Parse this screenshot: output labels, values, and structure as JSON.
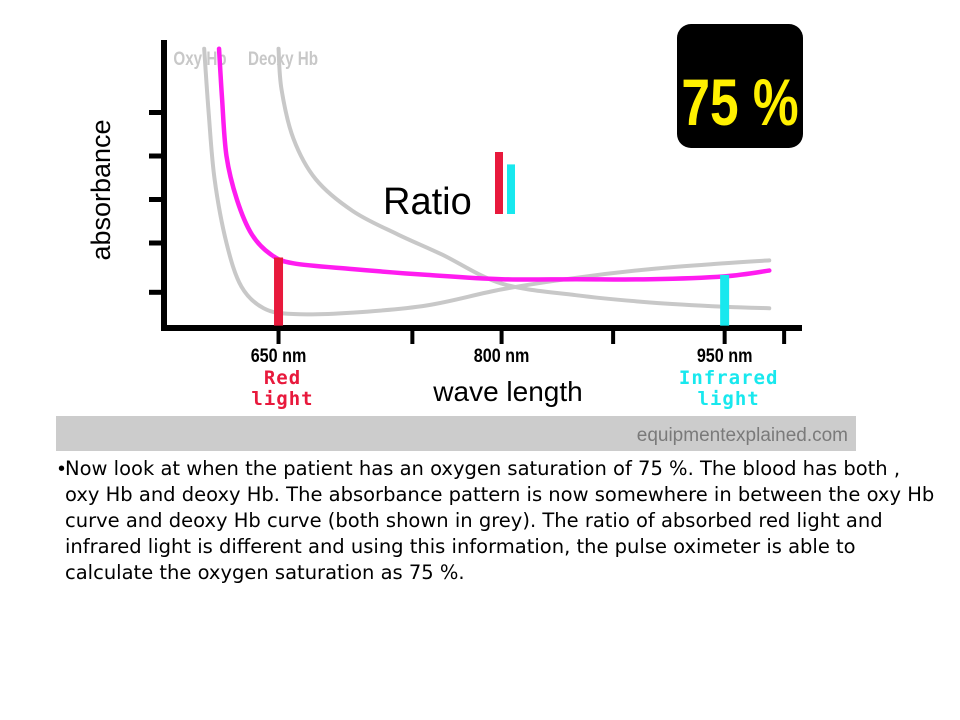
{
  "chart_data": {
    "type": "line",
    "title": "",
    "xlabel": "wave length",
    "ylabel": "absorbance",
    "x_ticks": [
      {
        "value": 650,
        "label": "650 nm",
        "sublabel": "Red light",
        "color": "#e8193c"
      },
      {
        "value": 800,
        "label": "800 nm",
        "sublabel": "",
        "color": ""
      },
      {
        "value": 950,
        "label": "950 nm",
        "sublabel": "Infrared light",
        "color": "#18e8ee"
      }
    ],
    "xlim": [
      575,
      1000
    ],
    "ylim": [
      0,
      10
    ],
    "grid": false,
    "legend_placement": "top-left",
    "series": [
      {
        "name": "Oxy Hb",
        "color": "#c8c8c8",
        "points": [
          [
            600,
            9.7
          ],
          [
            603,
            7.5
          ],
          [
            607,
            5.2
          ],
          [
            615,
            3.0
          ],
          [
            625,
            1.5
          ],
          [
            640,
            0.75
          ],
          [
            660,
            0.55
          ],
          [
            700,
            0.6
          ],
          [
            750,
            0.85
          ],
          [
            800,
            1.4
          ],
          [
            850,
            1.8
          ],
          [
            900,
            2.1
          ],
          [
            950,
            2.3
          ],
          [
            980,
            2.4
          ]
        ]
      },
      {
        "name": "Deoxy Hb",
        "color": "#c8c8c8",
        "points": [
          [
            650,
            9.7
          ],
          [
            652,
            8.3
          ],
          [
            660,
            6.6
          ],
          [
            675,
            5.2
          ],
          [
            700,
            4.1
          ],
          [
            730,
            3.3
          ],
          [
            760,
            2.6
          ],
          [
            800,
            1.6
          ],
          [
            850,
            1.2
          ],
          [
            900,
            0.95
          ],
          [
            950,
            0.8
          ],
          [
            980,
            0.75
          ]
        ]
      },
      {
        "name": "",
        "color": "#ff1cf0",
        "points": [
          [
            610,
            9.7
          ],
          [
            612,
            8.0
          ],
          [
            615,
            6.0
          ],
          [
            622,
            4.5
          ],
          [
            632,
            3.3
          ],
          [
            645,
            2.6
          ],
          [
            660,
            2.3
          ],
          [
            700,
            2.1
          ],
          [
            750,
            1.9
          ],
          [
            800,
            1.75
          ],
          [
            850,
            1.75
          ],
          [
            900,
            1.75
          ],
          [
            950,
            1.85
          ],
          [
            980,
            2.05
          ]
        ]
      }
    ],
    "bars": [
      {
        "x": 650,
        "height": 2.5,
        "color": "#e8193c"
      },
      {
        "x": 950,
        "height": 1.9,
        "color": "#18e8ee"
      }
    ],
    "ratio": {
      "label": "Ratio",
      "red_color": "#e8193c",
      "ir_color": "#18e8ee",
      "red_value": 1.0,
      "ir_value": 0.8
    },
    "saturation_badge": "75 %"
  },
  "watermark": "equipmentexplained.com",
  "bullet_symbol": "•",
  "paragraph": "Now look at when the patient has an oxygen saturation of 75 %. The blood has both , oxy Hb and deoxy Hb. The absorbance pattern is now somewhere in between the oxy Hb curve and deoxy Hb curve (both shown in grey). The ratio of absorbed red light and infrared light is different and using this information, the pulse oximeter is able to calculate the oxygen saturation as 75 %."
}
